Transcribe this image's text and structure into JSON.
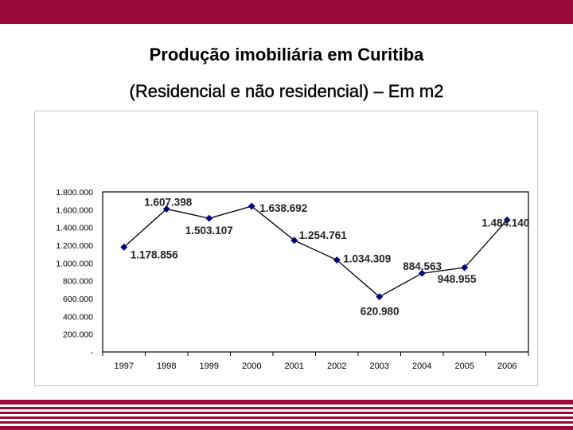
{
  "slide": {
    "title_line1": "Produção imobiliária em Curitiba",
    "title_line2": "(Residencial e não residencial) – Em m2",
    "accent_color": "#9b0b3a"
  },
  "chart_data": {
    "type": "line",
    "categories": [
      "1997",
      "1998",
      "1999",
      "2000",
      "2001",
      "2002",
      "2003",
      "2004",
      "2005",
      "2006"
    ],
    "values": [
      1178856,
      1607398,
      1503107,
      1638692,
      1254761,
      1034309,
      620980,
      884563,
      948955,
      1484140
    ],
    "data_labels": [
      "1.178.856",
      "1.607.398",
      "1.503.107",
      "1.638.692",
      "1.254.761",
      "1.034.309",
      "620.980",
      "884.563",
      "948.955",
      "1.484.140"
    ],
    "y_ticks": [
      0,
      200000,
      400000,
      600000,
      800000,
      1000000,
      1200000,
      1400000,
      1600000,
      1800000
    ],
    "y_tick_labels": [
      "-",
      "200.000",
      "400.000",
      "600.000",
      "800.000",
      "1.000.000",
      "1.200.000",
      "1.400.000",
      "1.600.000",
      "1.800.000"
    ],
    "ylim": [
      0,
      1800000
    ],
    "grid": false,
    "legend": "none",
    "series_color": "#000080"
  }
}
